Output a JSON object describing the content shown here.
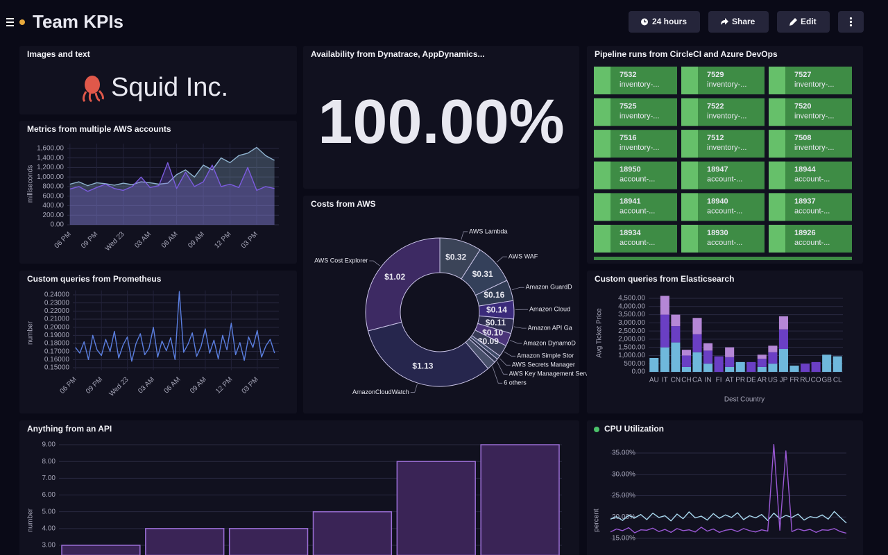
{
  "header": {
    "title": "Team KPIs",
    "buttons": [
      "24 hours",
      "Share",
      "Edit"
    ]
  },
  "images_panel": {
    "title": "Images and text",
    "text": "Squid Inc."
  },
  "availability_panel": {
    "title": "Availability from Dynatrace, AppDynamics...",
    "value": "100.00%"
  },
  "pipeline_panel": {
    "title": "Pipeline runs from CircleCI and Azure DevOps",
    "runs": [
      [
        "7532",
        "inventory-..."
      ],
      [
        "7529",
        "inventory-..."
      ],
      [
        "7527",
        "inventory-..."
      ],
      [
        "7525",
        "inventory-..."
      ],
      [
        "7522",
        "inventory-..."
      ],
      [
        "7520",
        "inventory-..."
      ],
      [
        "7516",
        "inventory-..."
      ],
      [
        "7512",
        "inventory-..."
      ],
      [
        "7508",
        "inventory-..."
      ],
      [
        "18950",
        "account-..."
      ],
      [
        "18947",
        "account-..."
      ],
      [
        "18944",
        "account-..."
      ],
      [
        "18941",
        "account-..."
      ],
      [
        "18940",
        "account-..."
      ],
      [
        "18937",
        "account-..."
      ],
      [
        "18934",
        "account-..."
      ],
      [
        "18930",
        "account-..."
      ],
      [
        "18926",
        "account-..."
      ]
    ]
  },
  "chart_data": [
    {
      "type": "area",
      "title": "Metrics from multiple AWS accounts",
      "y_label": "milliseconds",
      "x": [
        0,
        1,
        2,
        3,
        4,
        5,
        6,
        7,
        8,
        9,
        10,
        11,
        12,
        13,
        14,
        15,
        16,
        17,
        18,
        19,
        20,
        21,
        22,
        23
      ],
      "xlim": [
        -0.3,
        23.5
      ],
      "xticks": [
        {
          "value": 0,
          "label": "06 PM"
        },
        {
          "value": 3,
          "label": "09 PM"
        },
        {
          "value": 6,
          "label": "Wed 23"
        },
        {
          "value": 9,
          "label": "03 AM"
        },
        {
          "value": 12,
          "label": "06 AM"
        },
        {
          "value": 15,
          "label": "09 AM"
        },
        {
          "value": 18,
          "label": "12 PM"
        },
        {
          "value": 21,
          "label": "03 PM"
        }
      ],
      "ylim": [
        0,
        1700
      ],
      "yticks": [
        {
          "value": 0,
          "label": "0.00"
        },
        {
          "value": 200,
          "label": "200.00"
        },
        {
          "value": 400,
          "label": "400.00"
        },
        {
          "value": 600,
          "label": "600.00"
        },
        {
          "value": 800,
          "label": "800.00"
        },
        {
          "value": 1000,
          "label": "1,000.00"
        },
        {
          "value": 1200,
          "label": "1,200.00"
        },
        {
          "value": 1400,
          "label": "1,400.00"
        },
        {
          "value": 1600,
          "label": "1,600.00"
        }
      ],
      "grid": true,
      "series": [
        {
          "color": "#8fb3cf",
          "values": [
            850,
            900,
            820,
            880,
            860,
            830,
            870,
            840,
            900,
            880,
            850,
            870,
            1050,
            1150,
            1000,
            1250,
            1150,
            1400,
            1300,
            1450,
            1500,
            1620,
            1450,
            1350
          ]
        },
        {
          "color": "#7c5ce0",
          "values": [
            750,
            800,
            700,
            780,
            850,
            760,
            720,
            800,
            1000,
            780,
            820,
            1300,
            760,
            1100,
            800,
            900,
            1250,
            800,
            850,
            780,
            1200,
            720,
            800,
            760
          ]
        }
      ]
    },
    {
      "type": "line",
      "title": "Custom queries from Prometheus",
      "y_label": "number",
      "x": [
        0,
        0.5,
        1,
        1.5,
        2,
        2.5,
        3,
        3.5,
        4,
        4.5,
        5,
        5.5,
        6,
        6.5,
        7,
        7.5,
        8,
        8.5,
        9,
        9.5,
        10,
        10.5,
        11,
        11.5,
        12,
        12.5,
        13,
        13.5,
        14,
        14.5,
        15,
        15.5,
        16,
        16.5,
        17,
        17.5,
        18,
        18.5,
        19,
        19.5,
        20,
        20.5,
        21,
        21.5,
        22,
        22.5,
        23
      ],
      "xlim": [
        -0.3,
        23.5
      ],
      "xticks": [
        {
          "value": 0,
          "label": "06 PM"
        },
        {
          "value": 3,
          "label": "09 PM"
        },
        {
          "value": 6,
          "label": "Wed 23"
        },
        {
          "value": 9,
          "label": "03 AM"
        },
        {
          "value": 12,
          "label": "06 AM"
        },
        {
          "value": 15,
          "label": "09 AM"
        },
        {
          "value": 18,
          "label": "12 PM"
        },
        {
          "value": 21,
          "label": "03 PM"
        }
      ],
      "ylim": [
        0.147,
        0.2455
      ],
      "yticks": [
        {
          "value": 0.15,
          "label": "0.15000"
        },
        {
          "value": 0.16,
          "label": "0.16000"
        },
        {
          "value": 0.17,
          "label": "0.17000"
        },
        {
          "value": 0.18,
          "label": "0.18000"
        },
        {
          "value": 0.19,
          "label": "0.19000"
        },
        {
          "value": 0.2,
          "label": "0.20000"
        },
        {
          "value": 0.21,
          "label": "0.21000"
        },
        {
          "value": 0.22,
          "label": "0.22000"
        },
        {
          "value": 0.23,
          "label": "0.23000"
        },
        {
          "value": 0.24,
          "label": "0.24000"
        }
      ],
      "grid": true,
      "series": [
        {
          "color": "#5b7fe0",
          "values": [
            0.175,
            0.168,
            0.182,
            0.16,
            0.19,
            0.172,
            0.165,
            0.185,
            0.17,
            0.195,
            0.162,
            0.178,
            0.188,
            0.158,
            0.18,
            0.192,
            0.166,
            0.174,
            0.2,
            0.163,
            0.183,
            0.171,
            0.187,
            0.16,
            0.244,
            0.169,
            0.179,
            0.193,
            0.164,
            0.176,
            0.198,
            0.168,
            0.184,
            0.161,
            0.19,
            0.172,
            0.205,
            0.166,
            0.181,
            0.159,
            0.188,
            0.175,
            0.196,
            0.163,
            0.177,
            0.185,
            0.168
          ]
        }
      ]
    },
    {
      "type": "pie",
      "donut": true,
      "title": "Costs from AWS",
      "categories": [
        "AWS Lambda",
        "AWS WAF",
        "Amazon GuardD",
        "Amazon Cloud",
        "Amazon API Ga",
        "Amazon DynamoD",
        "Amazon Simple Stor",
        "AWS Secrets Manager",
        "AWS Key Management Serv",
        "6 others",
        "AmazonCloudWatch",
        "AWS Cost Explorer"
      ],
      "values": [
        0.32,
        0.31,
        0.16,
        0.14,
        0.11,
        0.1,
        0.09,
        0.03,
        0.03,
        0.07,
        1.13,
        1.02
      ],
      "value_labels": [
        "$0.32",
        "$0.31",
        "$0.16",
        "$0.14",
        "$0.11",
        "$0.10",
        "$0.09",
        null,
        null,
        null,
        "$1.13",
        "$1.02"
      ],
      "colors": [
        "#3b4458",
        "#34405a",
        "#2f3a52",
        "#3a2a7a",
        "#2c2c4e",
        "#4a3478",
        "#363a55",
        "#3e4a66",
        "#2f3650",
        "#48506a",
        "#26264d",
        "#3d2a63"
      ]
    },
    {
      "type": "stacked_bar",
      "title": "Custom queries from Elasticsearch",
      "y_label": "Avg Ticket Price",
      "x_label": "Dest Country",
      "categories": [
        "AU",
        "IT",
        "CN",
        "CH",
        "CA",
        "IN",
        "FI",
        "AT",
        "PR",
        "DE",
        "AR",
        "US",
        "JP",
        "FR",
        "RU",
        "CO",
        "GB",
        "CL"
      ],
      "ylim": [
        0,
        4700
      ],
      "yticks": [
        {
          "value": 0,
          "label": "0.00"
        },
        {
          "value": 500,
          "label": "500.00"
        },
        {
          "value": 1000,
          "label": "1,000.00"
        },
        {
          "value": 1500,
          "label": "1,500.00"
        },
        {
          "value": 2000,
          "label": "2,000.00"
        },
        {
          "value": 2500,
          "label": "2,500.00"
        },
        {
          "value": 3000,
          "label": "3,000.00"
        },
        {
          "value": 3500,
          "label": "3,500.00"
        },
        {
          "value": 4000,
          "label": "4,000.00"
        },
        {
          "value": 4500,
          "label": "4,500.00"
        }
      ],
      "grid": true,
      "series": [
        {
          "color": "#6fb8dc",
          "values": [
            850,
            1500,
            1800,
            300,
            1200,
            500,
            0,
            300,
            600,
            0,
            300,
            500,
            1400,
            380,
            0,
            0,
            1050,
            950
          ]
        },
        {
          "color": "#6a3fc4",
          "values": [
            0,
            2000,
            1000,
            700,
            1100,
            800,
            950,
            600,
            0,
            600,
            500,
            700,
            1200,
            0,
            500,
            600,
            0,
            0
          ]
        },
        {
          "color": "#b587d6",
          "values": [
            0,
            1150,
            700,
            350,
            1000,
            450,
            0,
            600,
            0,
            0,
            250,
            400,
            800,
            0,
            0,
            0,
            0,
            0
          ]
        }
      ]
    },
    {
      "type": "bar",
      "title": "Anything from an API",
      "y_label": "number",
      "values": [
        3,
        4,
        4,
        5,
        8,
        9
      ],
      "color": "#3a2456",
      "edge_color": "#9b6fd6",
      "ylim": [
        2.4,
        9.2
      ],
      "yticks": [
        {
          "value": 3,
          "label": "3.00"
        },
        {
          "value": 4,
          "label": "4.00"
        },
        {
          "value": 5,
          "label": "5.00"
        },
        {
          "value": 6,
          "label": "6.00"
        },
        {
          "value": 7,
          "label": "7.00"
        },
        {
          "value": 8,
          "label": "8.00"
        },
        {
          "value": 9,
          "label": "9.00"
        }
      ],
      "grid": true
    },
    {
      "type": "line",
      "title": "CPU Utilization",
      "y_label": "percent",
      "ylim": [
        11,
        37.3
      ],
      "yticks": [
        {
          "value": 15,
          "label": "15.00%"
        },
        {
          "value": 20,
          "label": "20.00%"
        },
        {
          "value": 25,
          "label": "25.00%"
        },
        {
          "value": 30,
          "label": "30.00%"
        },
        {
          "value": 35,
          "label": "35.00%"
        }
      ],
      "grid": true,
      "series": [
        {
          "color": "#a9d8ee",
          "values": [
            19.5,
            20.1,
            19.2,
            20.4,
            19.8,
            20.6,
            19.4,
            20.9,
            19.9,
            20.3,
            19.1,
            20.7,
            19.6,
            21.2,
            19.8,
            20.2,
            19.3,
            20.8,
            19.7,
            20.5,
            19.9,
            21.0,
            19.4,
            20.3,
            19.8,
            20.6,
            19.2,
            20.9,
            19.6,
            20.4,
            19.9,
            20.7,
            19.3,
            20.1,
            19.8,
            20.5,
            19.5,
            21.3,
            19.9,
            18.6
          ]
        },
        {
          "color": "#9b59d6",
          "values": [
            16.5,
            17.2,
            16.8,
            17.5,
            16.3,
            17.0,
            16.9,
            17.4,
            16.6,
            17.1,
            16.4,
            17.3,
            16.8,
            17.0,
            16.5,
            17.6,
            16.7,
            17.2,
            16.4,
            16.9,
            17.1,
            16.6,
            17.3,
            16.8,
            16.5,
            17.0,
            16.7,
            37.0,
            16.9,
            35.5,
            16.6,
            17.2,
            16.8,
            17.1,
            16.4,
            17.0,
            16.9,
            17.3,
            16.6,
            16.2
          ]
        }
      ]
    }
  ]
}
